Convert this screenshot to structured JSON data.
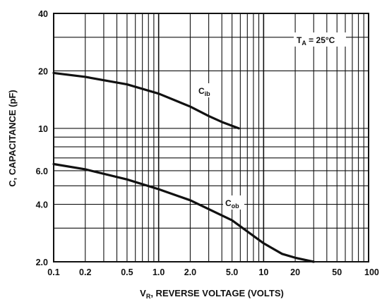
{
  "chart_data": {
    "type": "line",
    "xscale": "log",
    "yscale": "log",
    "xlim": [
      0.1,
      100
    ],
    "ylim": [
      2.0,
      40
    ],
    "grid": true,
    "xlabel": {
      "main": "V",
      "sub": "R",
      "rest": ", REVERSE VOLTAGE (VOLTS)"
    },
    "ylabel": "C, CAPACITANCE (pF)",
    "xticks": [
      {
        "value": 0.1,
        "label": "0.1"
      },
      {
        "value": 0.2,
        "label": "0.2"
      },
      {
        "value": 0.5,
        "label": "0.5"
      },
      {
        "value": 1.0,
        "label": "1.0"
      },
      {
        "value": 2.0,
        "label": "2.0"
      },
      {
        "value": 5.0,
        "label": "5.0"
      },
      {
        "value": 10,
        "label": "10"
      },
      {
        "value": 20,
        "label": "20"
      },
      {
        "value": 50,
        "label": "50"
      },
      {
        "value": 100,
        "label": "100"
      }
    ],
    "yticks": [
      {
        "value": 2.0,
        "label": "2.0"
      },
      {
        "value": 4.0,
        "label": "4.0"
      },
      {
        "value": 6.0,
        "label": "6.0"
      },
      {
        "value": 10,
        "label": "10"
      },
      {
        "value": 20,
        "label": "20"
      },
      {
        "value": 40,
        "label": "40"
      }
    ],
    "condition": {
      "main": "T",
      "sub": "A",
      "rest": " = 25°C"
    },
    "series": [
      {
        "name": {
          "main": "C",
          "sub": "ib"
        },
        "x": [
          0.1,
          0.2,
          0.5,
          1.0,
          2.0,
          3.0,
          4.0,
          5.8
        ],
        "y": [
          19.5,
          18.6,
          17.0,
          15.2,
          13.0,
          11.6,
          10.8,
          10.0
        ]
      },
      {
        "name": {
          "main": "C",
          "sub": "ob"
        },
        "x": [
          0.1,
          0.2,
          0.5,
          1.0,
          2.0,
          5.0,
          10,
          15,
          20,
          30
        ],
        "y": [
          6.5,
          6.1,
          5.4,
          4.8,
          4.2,
          3.3,
          2.5,
          2.2,
          2.1,
          2.0
        ]
      }
    ]
  }
}
